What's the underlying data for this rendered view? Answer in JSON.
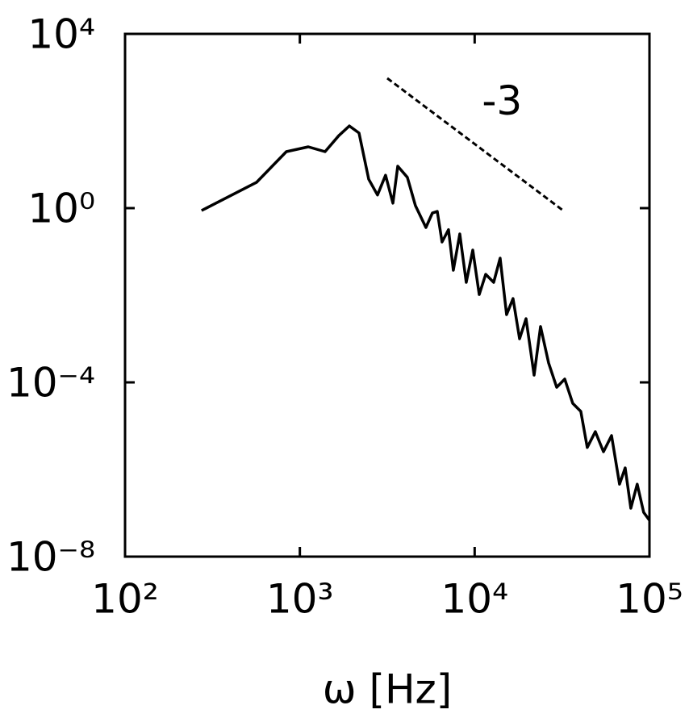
{
  "chart_data": {
    "type": "line",
    "xlabel": "ω [Hz]",
    "xscale": "log",
    "yscale": "log",
    "xlim": [
      100,
      100000
    ],
    "ylim": [
      1e-08,
      10000
    ],
    "xticks": [
      {
        "value": 100,
        "label": "10²"
      },
      {
        "value": 1000,
        "label": "10³"
      },
      {
        "value": 10000,
        "label": "10⁴"
      },
      {
        "value": 100000,
        "label": "10⁵"
      }
    ],
    "yticks": [
      {
        "value": 1e-08,
        "label": "10⁻⁸"
      },
      {
        "value": 0.0001,
        "label": "10⁻⁴"
      },
      {
        "value": 1,
        "label": "10⁰"
      },
      {
        "value": 10000,
        "label": "10⁴"
      }
    ],
    "color": "#000000",
    "x": [
      274,
      565,
      837,
      1117,
      1393,
      1670,
      1918,
      2179,
      2476,
      2782,
      3094,
      3406,
      3630,
      4122,
      4581,
      5260,
      5728,
      6109,
      6510,
      7087,
      7551,
      8222,
      8954,
      9750,
      10620,
      11560,
      12850,
      13990,
      15230,
      16580,
      18060,
      19670,
      21880,
      23820,
      26490,
      29450,
      32750,
      36410,
      40480,
      44060,
      48990,
      54550,
      60670,
      67450,
      72610,
      78200,
      85110,
      92680,
      100000
    ],
    "values": [
      0.88,
      3.9,
      19.8,
      25.5,
      19.8,
      46,
      77,
      53,
      4.6,
      2.0,
      5.7,
      1.3,
      9.2,
      5.1,
      1.14,
      0.36,
      0.77,
      0.84,
      0.167,
      0.32,
      0.0375,
      0.255,
      0.0198,
      0.109,
      0.0104,
      0.0303,
      0.0198,
      0.0711,
      0.0036,
      0.0084,
      0.001,
      0.0029,
      0.000147,
      0.0019,
      0.000278,
      7.7e-05,
      0.000119,
      3.3e-05,
      2.15e-05,
      3.2e-06,
      7.4e-06,
      2.55e-06,
      6e-06,
      4.6e-07,
      1.09e-06,
      1.29e-07,
      4.6e-07,
      1.04e-07,
      6.8e-08
    ],
    "reference": {
      "x": [
        3162,
        31623
      ],
      "values": [
        957,
        0.92
      ],
      "style": "dashed",
      "label": "-3"
    }
  }
}
